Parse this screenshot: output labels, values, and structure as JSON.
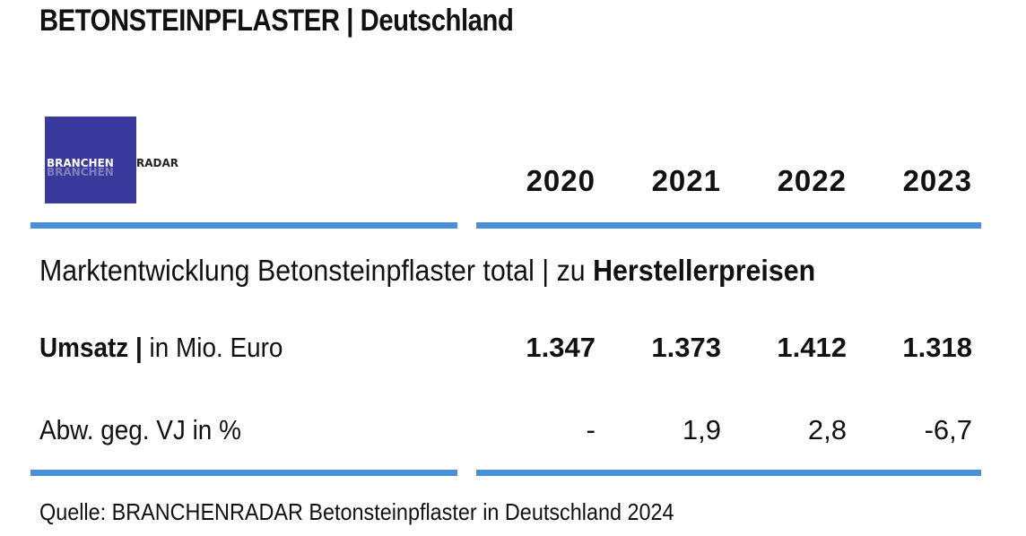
{
  "title": "BETONSTEINPFLASTER | Deutschland",
  "logo": {
    "text": "BRANCHENRADAR",
    "part1": "BRANCHEN",
    "part2": "RADAR",
    "background": "#3a3a9c"
  },
  "accent_color": "#4a90d9",
  "chart_data": {
    "type": "table",
    "heading_main": "Marktentwicklung Betonsteinpflaster total | zu ",
    "heading_bold": "Herstellerpreisen",
    "columns": [
      "2020",
      "2021",
      "2022",
      "2023"
    ],
    "rows": [
      {
        "label_bold": "Umsatz |",
        "label_rest": " in Mio. Euro",
        "values": [
          "1.347",
          "1.373",
          "1.412",
          "1.318"
        ]
      },
      {
        "label_bold": "",
        "label_rest": "Abw. geg. VJ in %",
        "values": [
          "-",
          "1,9",
          "2,8",
          "-6,7"
        ]
      }
    ],
    "source": "Quelle: BRANCHENRADAR Betonsteinpflaster in Deutschland 2024"
  }
}
